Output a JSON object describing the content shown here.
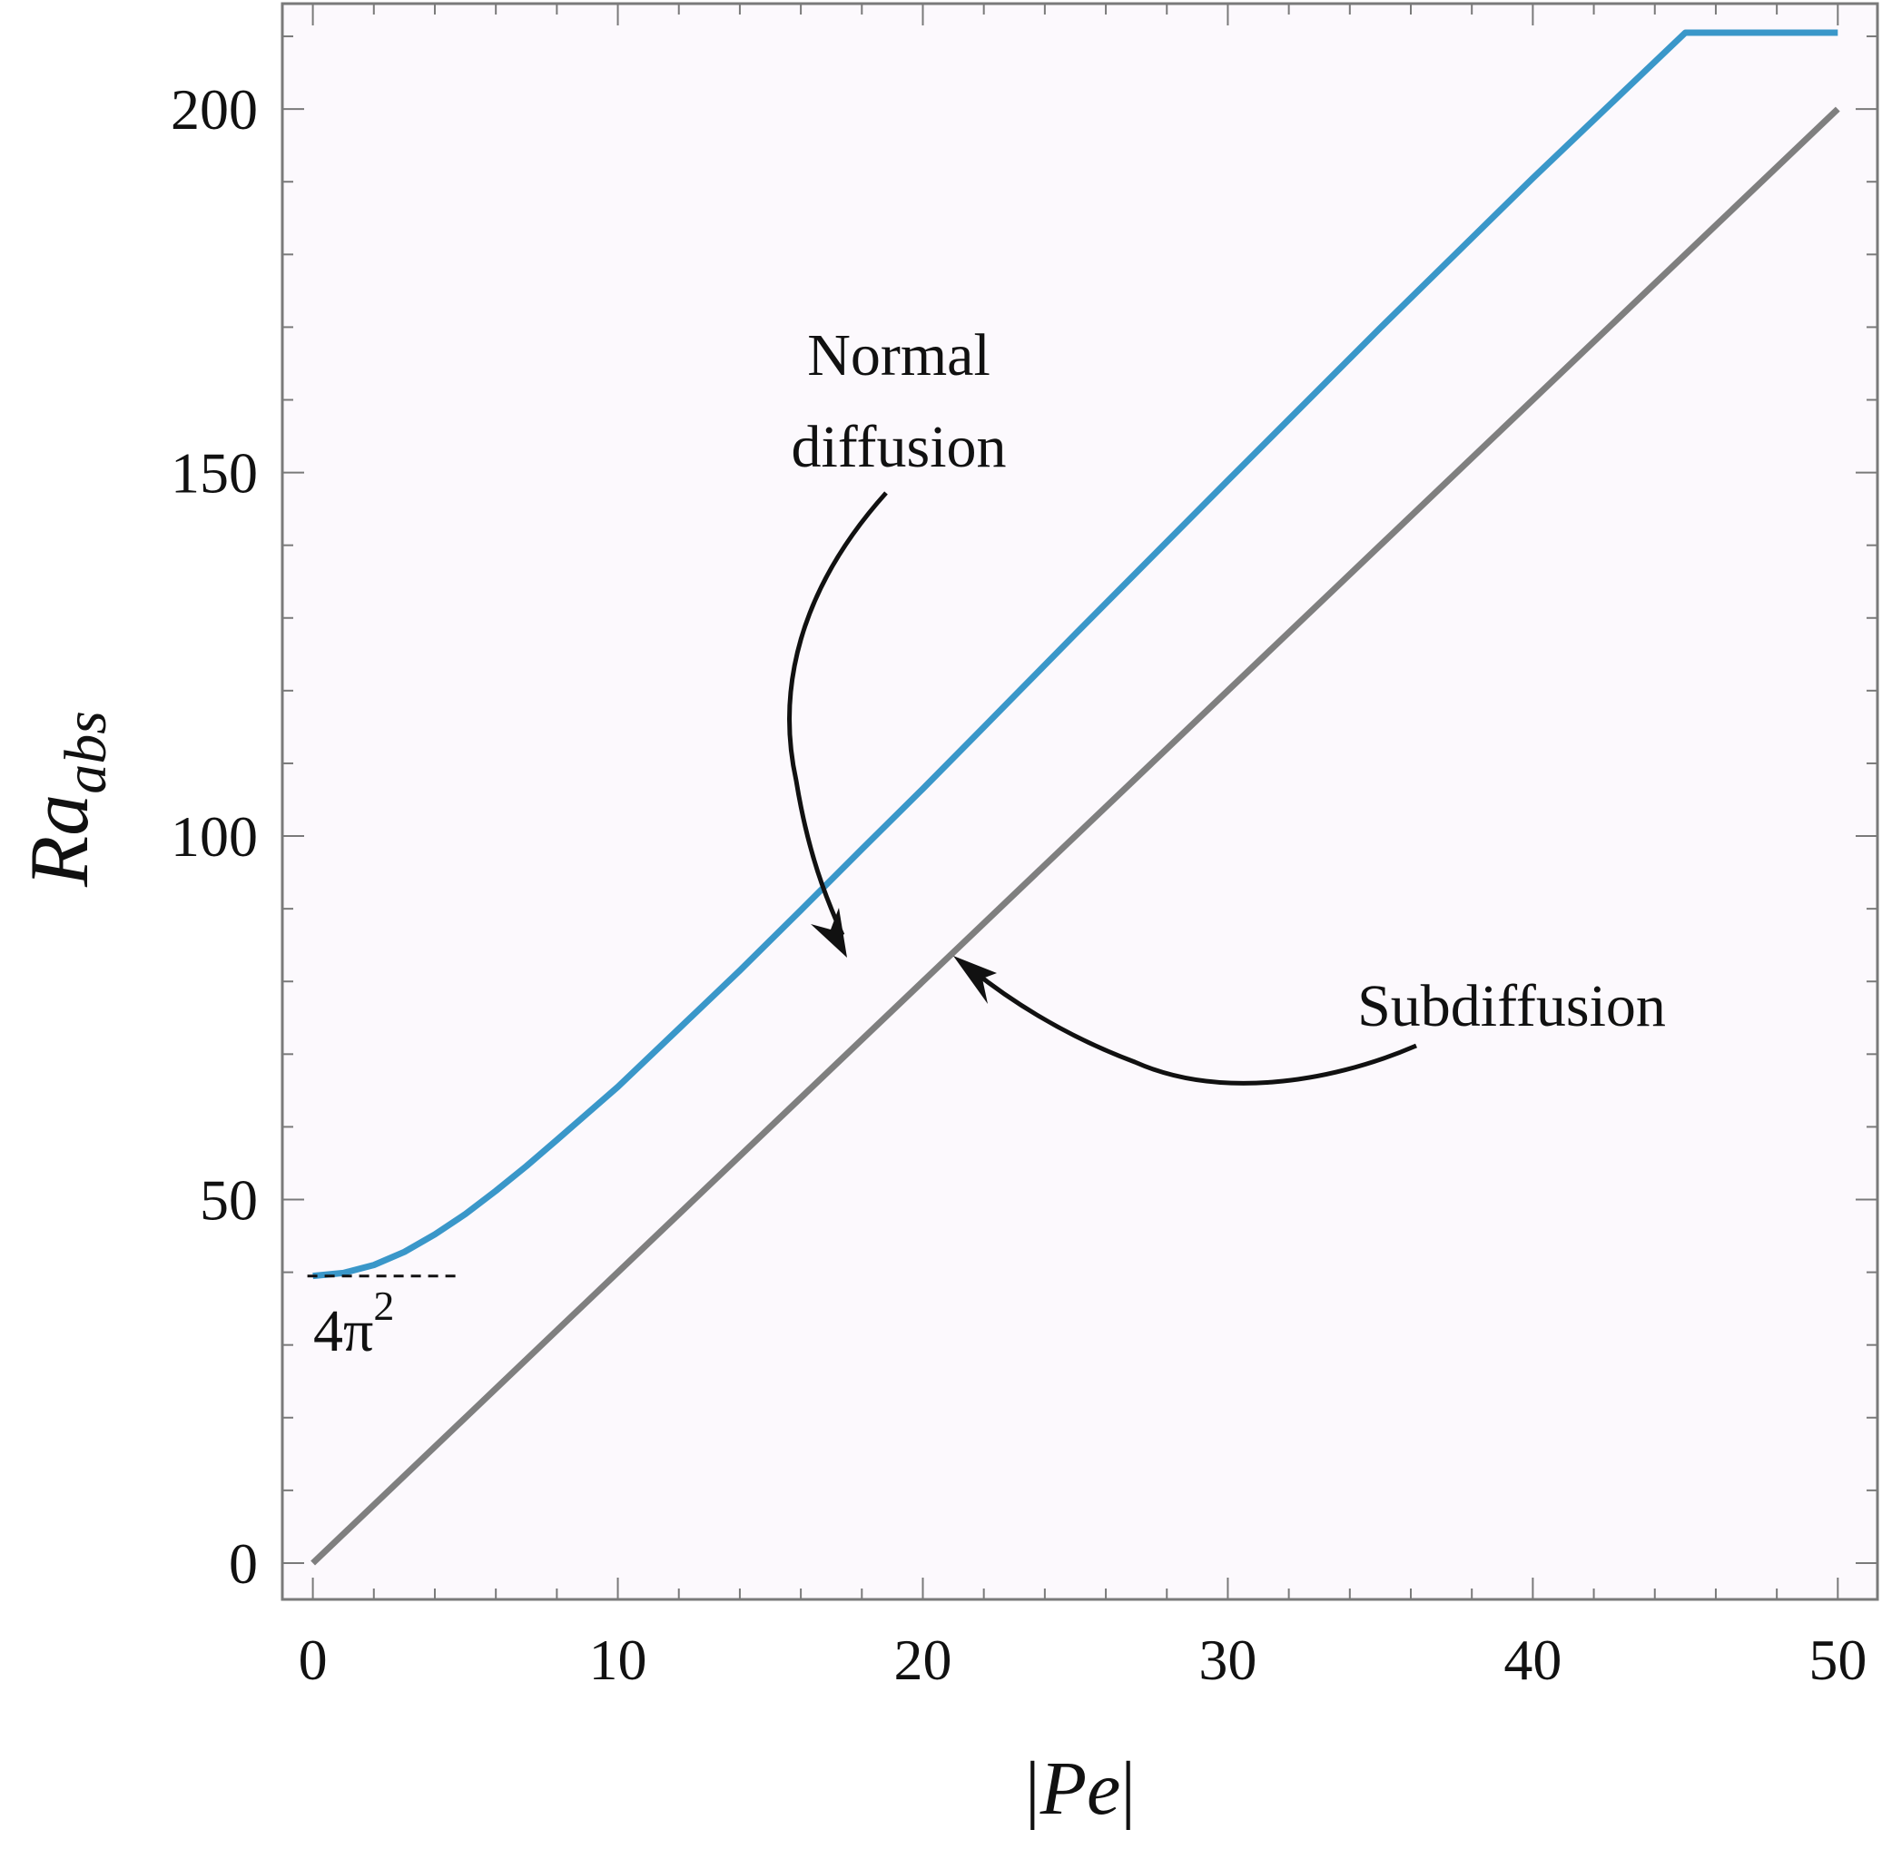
{
  "chart_data": {
    "type": "line",
    "xlabel": {
      "bar_left": "|",
      "var": "Pe",
      "bar_right": "|"
    },
    "ylabel": {
      "main": "Ra",
      "sub": "abs"
    },
    "xlim": [
      -1,
      51.3
    ],
    "ylim": [
      -5,
      214.5
    ],
    "x_ticks": [
      0,
      10,
      20,
      30,
      40,
      50
    ],
    "y_ticks": [
      0,
      50,
      100,
      150,
      200
    ],
    "x_minor_step": 2,
    "y_minor_step": 10,
    "grid": false,
    "background": "#fcf9fd",
    "series": [
      {
        "color": "#3a97c9",
        "x": [
          0,
          1,
          2,
          3,
          4,
          5,
          6,
          7,
          8,
          10,
          12,
          14,
          16,
          18,
          20,
          22,
          25,
          30,
          35,
          40,
          45,
          50
        ],
        "y": [
          39.5,
          39.9,
          41,
          42.8,
          45.2,
          48,
          51.2,
          54.6,
          58.2,
          65.5,
          73.5,
          81.5,
          89.8,
          98.2,
          106.5,
          115,
          127.8,
          148.9,
          169.9,
          190.5,
          210.5,
          210.5
        ]
      },
      {
        "color": "#7f7f7f",
        "x": [
          0,
          50
        ],
        "y": [
          0,
          200
        ]
      }
    ],
    "annotations": {
      "normal_line1": "Normal",
      "normal_line2": "diffusion",
      "subdiffusion": "Subdiffusion",
      "asymptote_base": "4π",
      "asymptote_exp": "2",
      "asymptote_value": 39.48
    }
  }
}
